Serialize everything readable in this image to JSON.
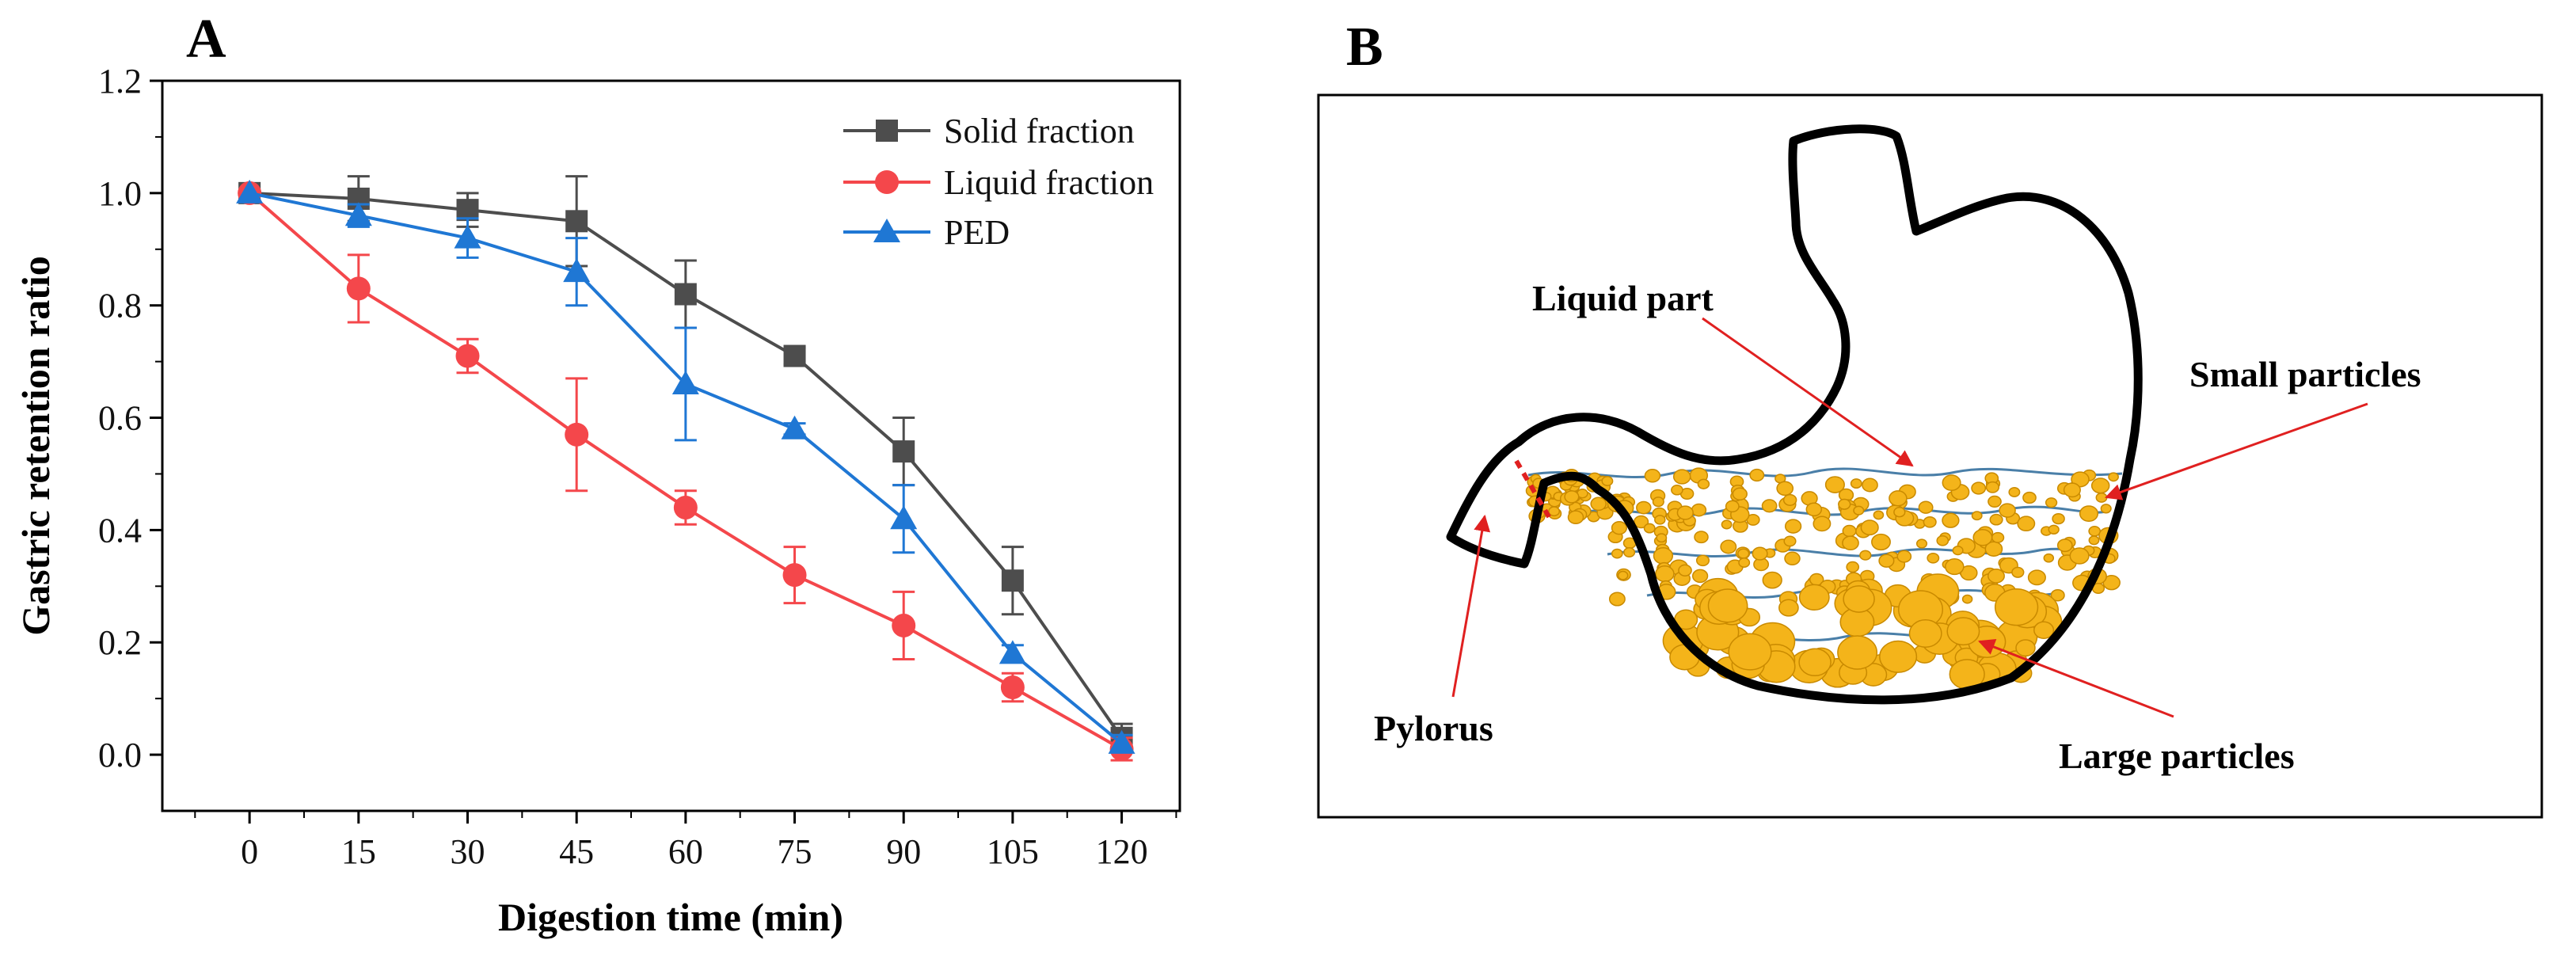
{
  "panel_a_label": "A",
  "panel_b_label": "B",
  "chart_data": {
    "type": "line",
    "title": "",
    "xlabel": "Digestion time (min)",
    "ylabel": "Gastric retention ratio",
    "x": [
      0,
      15,
      30,
      45,
      60,
      75,
      90,
      105,
      120
    ],
    "x_tick_labels": [
      "0",
      "15",
      "30",
      "45",
      "60",
      "75",
      "90",
      "105",
      "120"
    ],
    "xlim": [
      -12,
      128
    ],
    "ylim": [
      -0.1,
      1.2
    ],
    "y_ticks": [
      0.0,
      0.2,
      0.4,
      0.6,
      0.8,
      1.0,
      1.2
    ],
    "y_tick_labels": [
      "0.0",
      "0.2",
      "0.4",
      "0.6",
      "0.8",
      "1.0",
      "1.2"
    ],
    "legend_position": "top-right",
    "grid": false,
    "series": [
      {
        "name": "Solid fraction",
        "color": "#4d4d4d",
        "marker": "square",
        "values": [
          1.0,
          0.99,
          0.97,
          0.95,
          0.82,
          0.71,
          0.54,
          0.31,
          0.03
        ],
        "errors": [
          0.0,
          0.04,
          0.03,
          0.08,
          0.06,
          0.015,
          0.06,
          0.06,
          0.025
        ]
      },
      {
        "name": "Liquid fraction",
        "color": "#f4474b",
        "marker": "circle",
        "values": [
          1.0,
          0.83,
          0.71,
          0.57,
          0.44,
          0.32,
          0.23,
          0.12,
          0.01
        ],
        "errors": [
          0.0,
          0.06,
          0.03,
          0.1,
          0.03,
          0.05,
          0.06,
          0.025,
          0.02
        ]
      },
      {
        "name": "PED",
        "color": "#1f77d4",
        "marker": "triangle",
        "values": [
          1.0,
          0.96,
          0.92,
          0.86,
          0.66,
          0.58,
          0.42,
          0.18,
          0.02
        ],
        "errors": [
          0.0,
          0.02,
          0.035,
          0.06,
          0.1,
          0.01,
          0.06,
          0.015,
          0.015
        ]
      }
    ]
  },
  "diagram": {
    "labels": {
      "liquid_part": "Liquid part",
      "small_particles": "Small particles",
      "pylorus": "Pylorus",
      "large_particles": "Large particles"
    },
    "colors": {
      "outline": "#000000",
      "particle_fill": "#f4b41a",
      "particle_edge": "#c98a00",
      "liquid_lines": "#4a7fa8",
      "arrow": "#e02020"
    }
  }
}
